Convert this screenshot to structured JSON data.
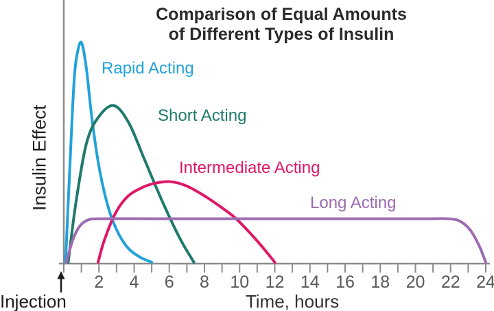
{
  "figure": {
    "background": "#ffffff"
  },
  "chart_data": {
    "type": "line",
    "title_line1": "Comparison of Equal Amounts",
    "title_line2": "of Different Types of Insulin",
    "xlabel": "Time, hours",
    "ylabel": "Insulin Effect",
    "annotation_injection": "Injection",
    "icons": {
      "injection_arrow": "up-arrow"
    },
    "xlim": [
      0,
      24
    ],
    "ylim": [
      0,
      1.05
    ],
    "x_minor_tick_step": 1,
    "x_major_tick_labels": [
      2,
      4,
      6,
      8,
      10,
      12,
      14,
      16,
      18,
      20,
      22,
      24
    ],
    "y_tick_labels": [],
    "grid": false,
    "legend_position": "inline-colored-labels",
    "axis_color": "#8b8b8e",
    "tick_label_color": "#57585a",
    "title_color": "#2b292c",
    "annotation_color": "#1c1c1c",
    "series": [
      {
        "name": "Rapid Acting",
        "color": "#23a2da",
        "points": [
          [
            0.1,
            0
          ],
          [
            0.35,
            0.45
          ],
          [
            0.6,
            0.85
          ],
          [
            0.85,
            0.99
          ],
          [
            1.05,
            1.0
          ],
          [
            1.3,
            0.88
          ],
          [
            1.6,
            0.66
          ],
          [
            2.0,
            0.44
          ],
          [
            2.5,
            0.26
          ],
          [
            3.0,
            0.15
          ],
          [
            3.6,
            0.07
          ],
          [
            4.3,
            0.025
          ],
          [
            5.0,
            0
          ]
        ]
      },
      {
        "name": "Short Acting",
        "color": "#1e7a6c",
        "points": [
          [
            0.25,
            0
          ],
          [
            0.7,
            0.28
          ],
          [
            1.3,
            0.55
          ],
          [
            2.0,
            0.67
          ],
          [
            2.85,
            0.72
          ],
          [
            3.7,
            0.64
          ],
          [
            4.6,
            0.47
          ],
          [
            5.6,
            0.28
          ],
          [
            6.6,
            0.11
          ],
          [
            7.4,
            0
          ]
        ]
      },
      {
        "name": "Intermediate Acting",
        "color": "#df1767",
        "points": [
          [
            1.95,
            0
          ],
          [
            2.3,
            0.1
          ],
          [
            2.9,
            0.22
          ],
          [
            3.6,
            0.3
          ],
          [
            4.5,
            0.345
          ],
          [
            5.3,
            0.365
          ],
          [
            6.1,
            0.37
          ],
          [
            7.0,
            0.35
          ],
          [
            8.0,
            0.305
          ],
          [
            9.0,
            0.25
          ],
          [
            9.8,
            0.2
          ],
          [
            10.7,
            0.125
          ],
          [
            11.4,
            0.06
          ],
          [
            12.0,
            0
          ]
        ]
      },
      {
        "name": "Long Acting",
        "color": "#9c6bb0",
        "points": [
          [
            0.15,
            0
          ],
          [
            0.5,
            0.1
          ],
          [
            0.9,
            0.165
          ],
          [
            1.4,
            0.195
          ],
          [
            2.2,
            0.2
          ],
          [
            5,
            0.2
          ],
          [
            9,
            0.2
          ],
          [
            13,
            0.2
          ],
          [
            17,
            0.2
          ],
          [
            20.5,
            0.2
          ],
          [
            21.8,
            0.2
          ],
          [
            22.5,
            0.19
          ],
          [
            23.1,
            0.15
          ],
          [
            23.6,
            0.08
          ],
          [
            24.0,
            0
          ]
        ]
      }
    ]
  }
}
